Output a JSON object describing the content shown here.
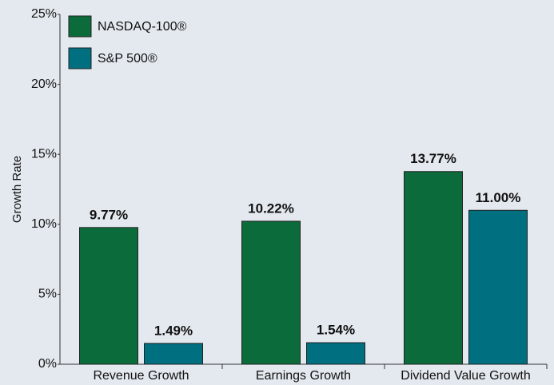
{
  "chart_data": {
    "type": "bar",
    "y_label": "Growth Rate",
    "categories": [
      "Revenue Growth",
      "Earnings Growth",
      "Dividend Value Growth"
    ],
    "series": [
      {
        "name": "NASDAQ-100®",
        "color": "#0b6b3a",
        "values": [
          9.77,
          10.22,
          13.77
        ],
        "value_labels": [
          "9.77%",
          "10.22%",
          "13.77%"
        ]
      },
      {
        "name": "S&P 500®",
        "color": "#006f80",
        "values": [
          1.49,
          1.54,
          11.0
        ],
        "value_labels": [
          "1.49%",
          "1.54%",
          "11.00%"
        ]
      }
    ],
    "ylim": [
      0,
      25
    ],
    "yticks": [
      {
        "value": 0,
        "label": "0%"
      },
      {
        "value": 5,
        "label": "5%"
      },
      {
        "value": 10,
        "label": "10%"
      },
      {
        "value": 15,
        "label": "15%"
      },
      {
        "value": 20,
        "label": "20%"
      },
      {
        "value": 25,
        "label": "25%"
      }
    ],
    "legend": "top-left"
  }
}
